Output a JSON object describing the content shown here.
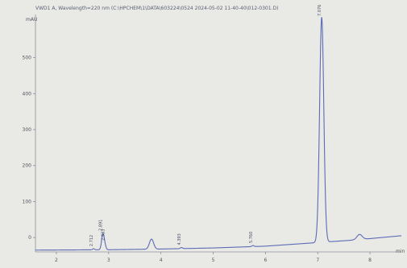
{
  "header": {
    "text": "VWD1 A, Wavelength=220 nm (C:\\HPCHEM\\1\\DATA\\603224\\0524 2024-05-02 11-40-40\\012-0301.D)"
  },
  "chart_data": {
    "type": "line",
    "title": "VWD1 A, Wavelength=220 nm (C:\\HPCHEM\\1\\DATA\\603224\\0524 2024-05-02 11-40-40\\012-0301.D)",
    "xlabel": "min",
    "ylabel": "mAU",
    "xlim": [
      1.6,
      8.6
    ],
    "ylim": [
      -40,
      620
    ],
    "x_ticks": [
      2,
      3,
      4,
      5,
      6,
      7,
      8
    ],
    "y_ticks": [
      0,
      100,
      200,
      300,
      400,
      500
    ],
    "grid": false,
    "legend": "none",
    "line_color": "#5b6bb5",
    "baseline": {
      "x": [
        1.6,
        3.0,
        4.0,
        5.0,
        6.0,
        7.0,
        7.6,
        8.0,
        8.6
      ],
      "y": [
        -35,
        -34,
        -32,
        -29,
        -24,
        -14,
        -8,
        -3,
        5
      ]
    },
    "peaks": [
      {
        "rt": 2.712,
        "rt_label": "2.712",
        "height": 3,
        "width": 0.02,
        "compound": ""
      },
      {
        "rt": 2.891,
        "rt_label": "2.891",
        "height": 45,
        "width": 0.025,
        "compound": ""
      },
      {
        "rt": 2.933,
        "rt_label": "2.933",
        "height": 8,
        "width": 0.02,
        "compound": ""
      },
      {
        "rt": 3.82,
        "rt_label": "",
        "height": 28,
        "width": 0.04,
        "compound": ""
      },
      {
        "rt": 4.393,
        "rt_label": "4.393",
        "height": 3,
        "width": 0.02,
        "compound": ""
      },
      {
        "rt": 5.76,
        "rt_label": "5.760",
        "height": 3,
        "width": 0.02,
        "compound": ""
      },
      {
        "rt": 7.076,
        "rt_label": "7.076",
        "height": 625,
        "width": 0.04,
        "compound": ""
      },
      {
        "rt": 7.8,
        "rt_label": "",
        "height": 14,
        "width": 0.05,
        "compound": ""
      }
    ]
  }
}
